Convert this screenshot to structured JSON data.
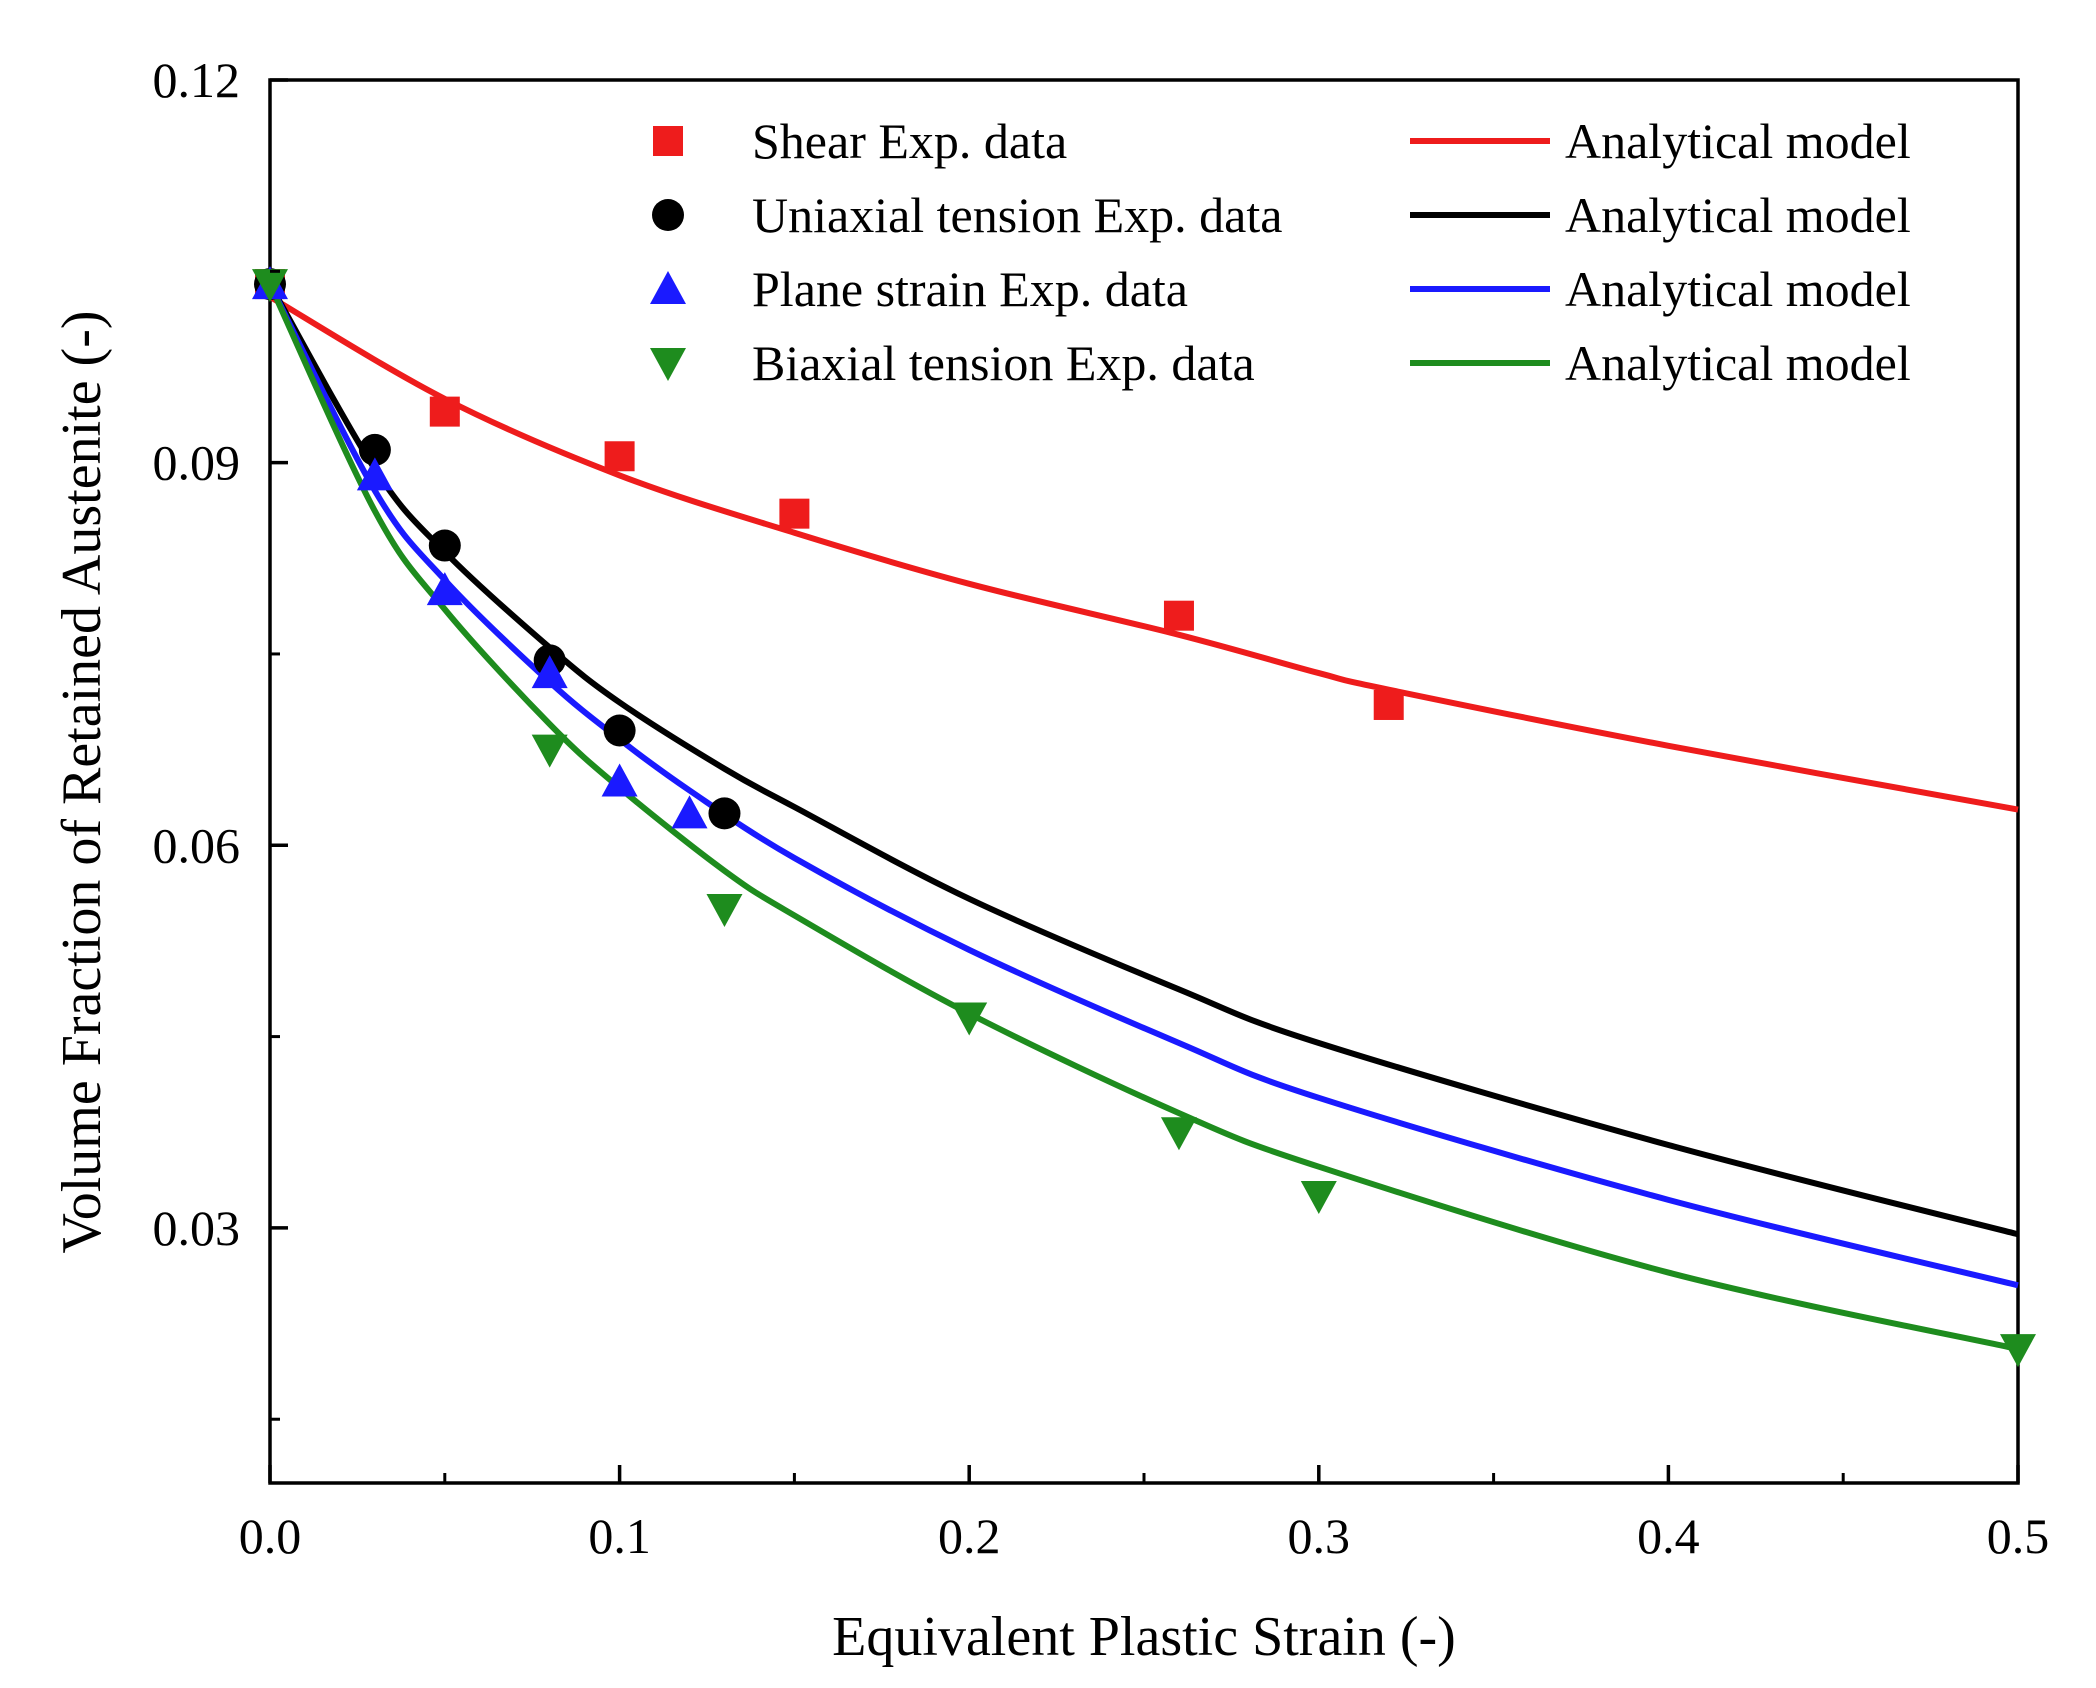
{
  "chart_data": {
    "type": "scatter",
    "title": "",
    "xlabel": "Equivalent Plastic Strain (-)",
    "ylabel": "Volume Fraction of Retained Austenite (-)",
    "xlim": [
      0,
      0.5
    ],
    "ylim": [
      0.01,
      0.12
    ],
    "xticks": [
      0.0,
      0.1,
      0.2,
      0.3,
      0.4,
      0.5
    ],
    "xtick_labels": [
      "0.0",
      "0.1",
      "0.2",
      "0.3",
      "0.4",
      "0.5"
    ],
    "yticks": [
      0.03,
      0.06,
      0.09,
      0.12
    ],
    "ytick_labels": [
      "0.03",
      "0.06",
      "0.09",
      "0.12"
    ],
    "grid": false,
    "legend_position": "top-right",
    "series": [
      {
        "name": "Shear Exp. data",
        "kind": "scatter",
        "marker": "square",
        "color": "#ee1c1c",
        "x": [
          0.0,
          0.05,
          0.1,
          0.15,
          0.26,
          0.32
        ],
        "y": [
          0.104,
          0.094,
          0.0905,
          0.086,
          0.078,
          0.071
        ]
      },
      {
        "name": "Uniaxial tension Exp. data",
        "kind": "scatter",
        "marker": "circle",
        "color": "#000000",
        "x": [
          0.0,
          0.03,
          0.05,
          0.08,
          0.1,
          0.13
        ],
        "y": [
          0.104,
          0.091,
          0.0835,
          0.0745,
          0.069,
          0.0625
        ]
      },
      {
        "name": "Plane strain Exp. data",
        "kind": "scatter",
        "marker": "triangle-up",
        "color": "#1a1aff",
        "x": [
          0.0,
          0.03,
          0.05,
          0.08,
          0.1,
          0.12
        ],
        "y": [
          0.104,
          0.089,
          0.08,
          0.0735,
          0.065,
          0.0625
        ]
      },
      {
        "name": "Biaxial tension Exp. data",
        "kind": "scatter",
        "marker": "triangle-down",
        "color": "#1e8c1e",
        "x": [
          0.0,
          0.08,
          0.13,
          0.2,
          0.26,
          0.3,
          0.5
        ],
        "y": [
          0.104,
          0.0675,
          0.055,
          0.0465,
          0.0375,
          0.0325,
          0.0205
        ]
      },
      {
        "name": "Analytical model",
        "kind": "line",
        "color": "#ee1c1c",
        "x": [
          0.0,
          0.05,
          0.1,
          0.15,
          0.2,
          0.26,
          0.3,
          0.32,
          0.4,
          0.5
        ],
        "y": [
          0.103,
          0.095,
          0.089,
          0.0845,
          0.0805,
          0.0765,
          0.0735,
          0.0722,
          0.0678,
          0.0628
        ]
      },
      {
        "name": "Analytical model",
        "kind": "line",
        "color": "#000000",
        "x": [
          0.0,
          0.03,
          0.05,
          0.08,
          0.1,
          0.13,
          0.15,
          0.2,
          0.26,
          0.3,
          0.4,
          0.5
        ],
        "y": [
          0.104,
          0.0895,
          0.083,
          0.0755,
          0.0712,
          0.066,
          0.063,
          0.0558,
          0.0487,
          0.0445,
          0.0365,
          0.0295
        ]
      },
      {
        "name": "Analytical model",
        "kind": "line",
        "color": "#1a1aff",
        "x": [
          0.0,
          0.03,
          0.05,
          0.08,
          0.1,
          0.12,
          0.15,
          0.2,
          0.26,
          0.3,
          0.4,
          0.5
        ],
        "y": [
          0.104,
          0.0878,
          0.0808,
          0.0728,
          0.0683,
          0.0643,
          0.059,
          0.0518,
          0.0445,
          0.0402,
          0.0322,
          0.0255
        ]
      },
      {
        "name": "Analytical model",
        "kind": "line",
        "color": "#1e8c1e",
        "x": [
          0.0,
          0.03,
          0.05,
          0.08,
          0.1,
          0.13,
          0.15,
          0.2,
          0.26,
          0.3,
          0.4,
          0.5
        ],
        "y": [
          0.104,
          0.0862,
          0.0785,
          0.0695,
          0.0645,
          0.058,
          0.0545,
          0.0468,
          0.039,
          0.0348,
          0.0265,
          0.0205
        ]
      }
    ]
  }
}
